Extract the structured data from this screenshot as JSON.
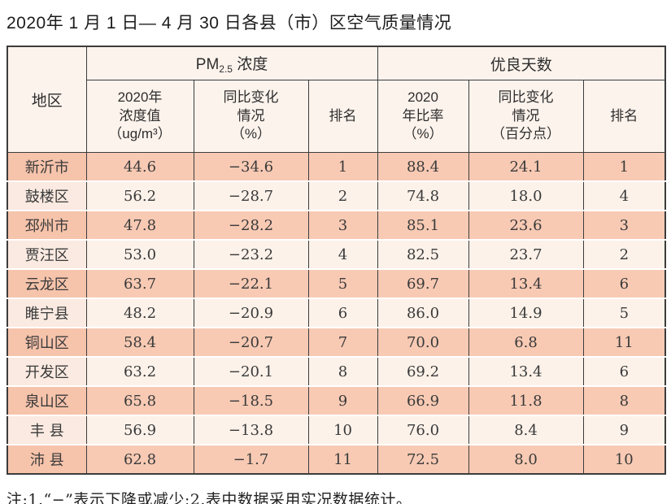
{
  "title": "2020年 1 月 1 日— 4 月 30 日各县（市）区空气质量情况",
  "note": "注:1.“−”表示下降或减少;2.表中数据采用实况数据统计。",
  "colors": {
    "row_salmon": "#f8cab4",
    "row_light": "#fcf2ea",
    "region_salmon": "#f6c3ab",
    "region_light": "#faeae1",
    "header_bg": "#fcf3ec",
    "border": "#3c3c3c"
  },
  "table": {
    "region_header": "地区",
    "pm25_group": {
      "prefix": "PM",
      "sub": "2.5",
      "suffix": " 浓度"
    },
    "good_days_group": "优良天数",
    "subheaders": {
      "pm_value": "2020年\n浓度值\n（ug/m³）",
      "pm_change": "同比变化\n情况\n（%）",
      "pm_rank": "排名",
      "good_ratio": "2020\n年比率\n（%）",
      "good_change": "同比变化\n情况\n（百分点）",
      "good_rank": "排名"
    },
    "rows": [
      {
        "region": "新沂市",
        "pm_value": "44.6",
        "pm_change": "−34.6",
        "pm_rank": "1",
        "good_ratio": "88.4",
        "good_change": "24.1",
        "good_rank": "1"
      },
      {
        "region": "鼓楼区",
        "pm_value": "56.2",
        "pm_change": "−28.7",
        "pm_rank": "2",
        "good_ratio": "74.8",
        "good_change": "18.0",
        "good_rank": "4"
      },
      {
        "region": "邳州市",
        "pm_value": "47.8",
        "pm_change": "−28.2",
        "pm_rank": "3",
        "good_ratio": "85.1",
        "good_change": "23.6",
        "good_rank": "3"
      },
      {
        "region": "贾汪区",
        "pm_value": "53.0",
        "pm_change": "−23.2",
        "pm_rank": "4",
        "good_ratio": "82.5",
        "good_change": "23.7",
        "good_rank": "2"
      },
      {
        "region": "云龙区",
        "pm_value": "63.7",
        "pm_change": "−22.1",
        "pm_rank": "5",
        "good_ratio": "69.7",
        "good_change": "13.4",
        "good_rank": "6"
      },
      {
        "region": "睢宁县",
        "pm_value": "48.2",
        "pm_change": "−20.9",
        "pm_rank": "6",
        "good_ratio": "86.0",
        "good_change": "14.9",
        "good_rank": "5"
      },
      {
        "region": "铜山区",
        "pm_value": "58.4",
        "pm_change": "−20.7",
        "pm_rank": "7",
        "good_ratio": "70.0",
        "good_change": "6.8",
        "good_rank": "11"
      },
      {
        "region": "开发区",
        "pm_value": "63.2",
        "pm_change": "−20.1",
        "pm_rank": "8",
        "good_ratio": "69.2",
        "good_change": "13.4",
        "good_rank": "6"
      },
      {
        "region": "泉山区",
        "pm_value": "65.8",
        "pm_change": "−18.5",
        "pm_rank": "9",
        "good_ratio": "66.9",
        "good_change": "11.8",
        "good_rank": "8"
      },
      {
        "region": "丰 县",
        "pm_value": "56.9",
        "pm_change": "−13.8",
        "pm_rank": "10",
        "good_ratio": "76.0",
        "good_change": "8.4",
        "good_rank": "9"
      },
      {
        "region": "沛 县",
        "pm_value": "62.8",
        "pm_change": "−1.7",
        "pm_rank": "11",
        "good_ratio": "72.5",
        "good_change": "8.0",
        "good_rank": "10"
      }
    ]
  }
}
